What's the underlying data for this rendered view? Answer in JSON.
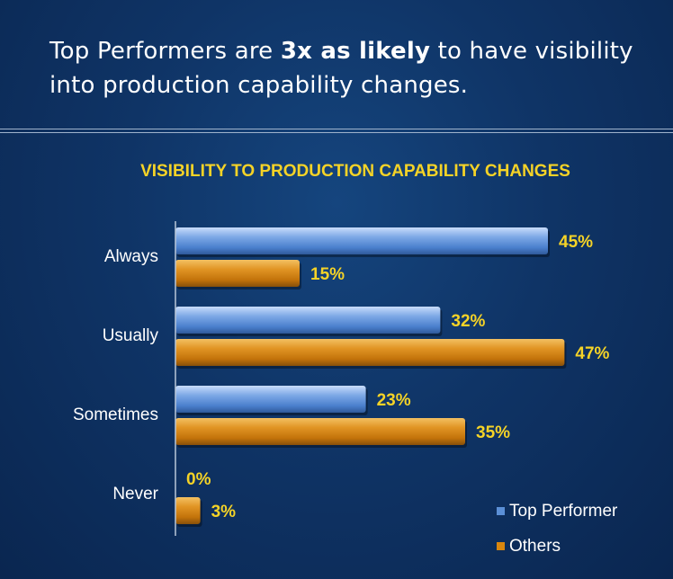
{
  "headline": {
    "before": "Top Performers are ",
    "bold": "3x as likely",
    "after": " to have visibility into production capability changes."
  },
  "colors": {
    "top_performer": "#5b8fd6",
    "others": "#d8860e",
    "value_label": "#f5d327"
  },
  "chart_data": {
    "type": "bar",
    "orientation": "horizontal",
    "title": "VISIBILITY TO PRODUCTION CAPABILITY CHANGES",
    "categories": [
      "Always",
      "Usually",
      "Sometimes",
      "Never"
    ],
    "series": [
      {
        "name": "Top Performer",
        "values": [
          45,
          32,
          23,
          0
        ],
        "labels": [
          "45%",
          "32%",
          "23%",
          "0%"
        ]
      },
      {
        "name": "Others",
        "values": [
          15,
          47,
          35,
          3
        ],
        "labels": [
          "15%",
          "47%",
          "35%",
          "3%"
        ]
      }
    ],
    "xlim": [
      0,
      50
    ],
    "grid": false,
    "legend": "bottom-right"
  }
}
